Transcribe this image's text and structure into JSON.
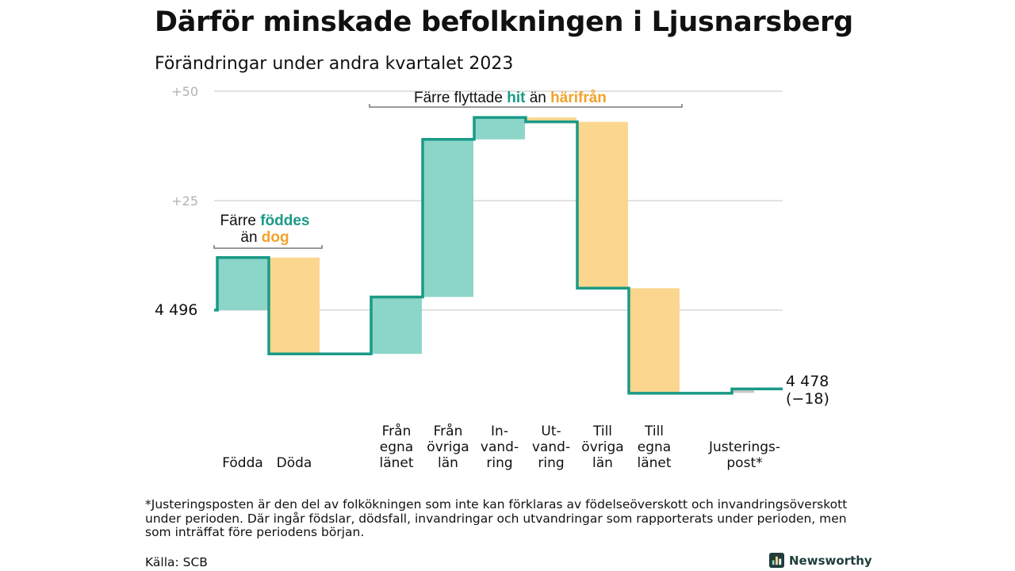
{
  "header": {
    "title": "Därför minskade befolkningen i Ljusnarsberg",
    "subtitle": "Förändringar under andra kvartalet 2023"
  },
  "annotations": {
    "births": {
      "line1_pre": "Färre ",
      "line1_hl": "föddes",
      "line2_pre": "än ",
      "line2_hl": "dog"
    },
    "moves": {
      "pre": "Färre flyttade ",
      "hl1": "hit",
      "mid": " än ",
      "hl2": "härifrån"
    }
  },
  "labels": {
    "start": "4  496",
    "end_value": "4 478",
    "end_change": "(−18)"
  },
  "footer": {
    "footnote": "*Justeringsposten är den del av folkökningen som inte kan förklaras av födelseöverskott och invandringsöverskott under perioden. Där ingår födslar, dödsfall, invandringar och utvandringar som rapporterats under perioden, men som inträffat före periodens början.",
    "source": "Källa: SCB",
    "brand": "Newsworthy"
  },
  "colors": {
    "increase": "#8cd5c9",
    "decrease": "#fbd68f",
    "line": "#1a9a86",
    "grid": "#d9d9d9",
    "tick": "#b3b3b3",
    "adjustment": "#c8c8c8"
  },
  "icons": {
    "brand": "bar-chart-icon"
  },
  "chart_data": {
    "type": "waterfall",
    "start_value": 4496,
    "end_value": 4478,
    "change": -18,
    "y_ticks": [
      {
        "value": 4546,
        "label": "+50"
      },
      {
        "value": 4521,
        "label": "+25"
      },
      {
        "value": 4496,
        "label": ""
      }
    ],
    "ylim": [
      4477,
      4550
    ],
    "grid": true,
    "steps": [
      {
        "label": [
          "Födda"
        ],
        "delta": 12
      },
      {
        "label": [
          "Döda"
        ],
        "delta": -22
      },
      {
        "label": [
          "Från",
          "egna",
          "länet"
        ],
        "delta": 13
      },
      {
        "label": [
          "Från",
          "övriga",
          "län"
        ],
        "delta": 36
      },
      {
        "label": [
          "In-",
          "vand-",
          "ring"
        ],
        "delta": 5
      },
      {
        "label": [
          "Ut-",
          "vand-",
          "ring"
        ],
        "delta": -1
      },
      {
        "label": [
          "Till",
          "övriga",
          "län"
        ],
        "delta": -38
      },
      {
        "label": [
          "Till",
          "egna",
          "länet"
        ],
        "delta": -24
      },
      {
        "label": [
          "Justerings-",
          "post*"
        ],
        "delta": 1
      }
    ]
  }
}
